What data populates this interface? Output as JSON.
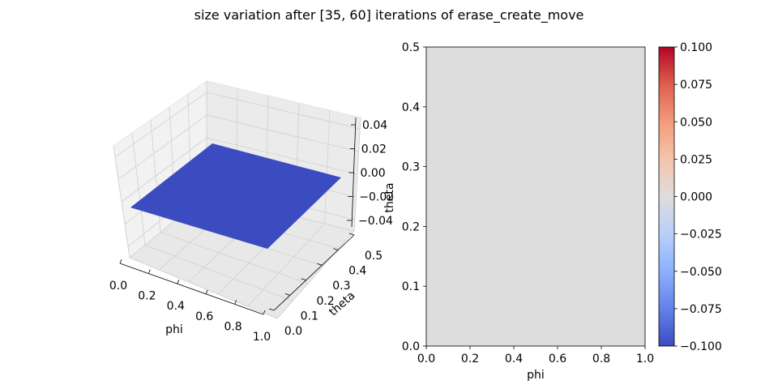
{
  "figure": {
    "title": "size variation after [35, 60] iterations of erase_create_move"
  },
  "chart_data": [
    {
      "type": "surface",
      "xlabel": "phi",
      "ylabel": "theta",
      "zlabel": "",
      "xlim": [
        0.0,
        1.0
      ],
      "ylim": [
        0.0,
        0.5
      ],
      "zlim": [
        -0.05,
        0.05
      ],
      "x_ticks": [
        "0.0",
        "0.2",
        "0.4",
        "0.6",
        "0.8",
        "1.0"
      ],
      "y_ticks": [
        "0.0",
        "0.1",
        "0.2",
        "0.3",
        "0.4",
        "0.5"
      ],
      "z_ticks": [
        "−0.04",
        "−0.02",
        "0.00",
        "0.02",
        "0.04"
      ],
      "surface_value": 0.0,
      "surface_color": "#3b4cc0",
      "colormap": "coolwarm"
    },
    {
      "type": "heatmap",
      "xlabel": "phi",
      "ylabel": "theta",
      "xlim": [
        0.0,
        1.0
      ],
      "ylim": [
        0.0,
        0.5
      ],
      "x_ticks": [
        "0.0",
        "0.2",
        "0.4",
        "0.6",
        "0.8",
        "1.0"
      ],
      "y_ticks": [
        "0.0",
        "0.1",
        "0.2",
        "0.3",
        "0.4",
        "0.5"
      ],
      "value": 0.0,
      "fill_color": "#dddddd",
      "colormap": "coolwarm",
      "colorbar": {
        "range": [
          -0.1,
          0.1
        ],
        "ticks": [
          "−0.100",
          "−0.075",
          "−0.050",
          "−0.025",
          "0.000",
          "0.025",
          "0.050",
          "0.075",
          "0.100"
        ],
        "colors": [
          "#3b4cc0",
          "#6282ea",
          "#8db0fe",
          "#b8d0f9",
          "#dddddd",
          "#f5c4ac",
          "#f49a7b",
          "#de604d",
          "#b40426"
        ]
      }
    }
  ]
}
